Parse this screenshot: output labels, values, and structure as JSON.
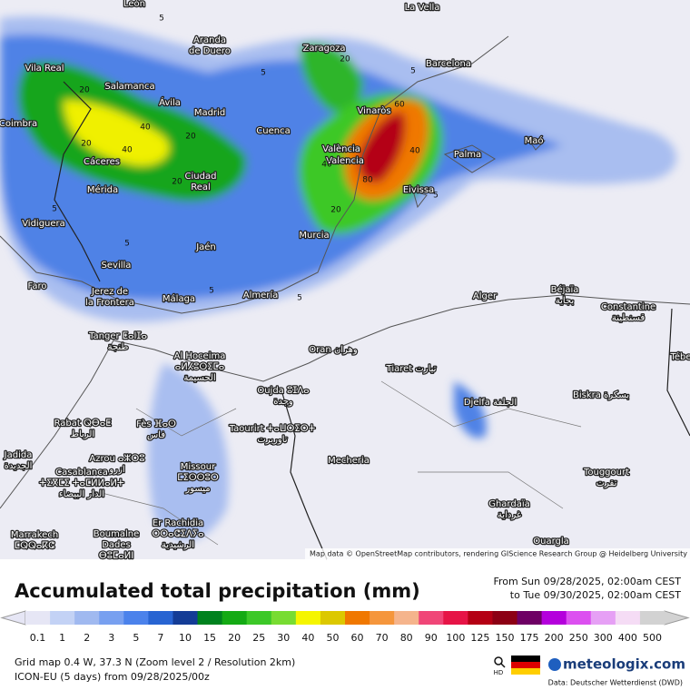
{
  "header": {
    "title": "Accumulated total precipitation (mm)",
    "period": [
      "From Sun 09/28/2025, 02:00am CEST",
      "to Tue 09/30/2025, 02:00am CEST"
    ]
  },
  "map": {
    "attribution": "Map data © OpenStreetMap contributors, rendering GIScience Research Group @ Heidelberg University",
    "cities": [
      {
        "lines": [
          "León"
        ]
      },
      {
        "lines": [
          "La Vella"
        ]
      },
      {
        "lines": [
          "Aranda",
          "de Duero"
        ]
      },
      {
        "lines": [
          "Zaragoza"
        ]
      },
      {
        "lines": [
          "Barcelona"
        ]
      },
      {
        "lines": [
          "Vila Real"
        ]
      },
      {
        "lines": [
          "Salamanca"
        ]
      },
      {
        "lines": [
          "Ávila"
        ]
      },
      {
        "lines": [
          "Madrid"
        ]
      },
      {
        "lines": [
          "Vinaròs"
        ]
      },
      {
        "lines": [
          "Coimbra"
        ]
      },
      {
        "lines": [
          "Cuenca"
        ]
      },
      {
        "lines": [
          "València"
        ]
      },
      {
        "lines": [
          "Valencia"
        ]
      },
      {
        "lines": [
          "Palma"
        ]
      },
      {
        "lines": [
          "Maó"
        ]
      },
      {
        "lines": [
          "Cáceres"
        ]
      },
      {
        "lines": [
          "Ciudad",
          "Real"
        ]
      },
      {
        "lines": [
          "Mérida"
        ]
      },
      {
        "lines": [
          "Eivissa"
        ]
      },
      {
        "lines": [
          "Vidiguera"
        ]
      },
      {
        "lines": [
          "Jaén"
        ]
      },
      {
        "lines": [
          "Murcia"
        ]
      },
      {
        "lines": [
          "Sevilla"
        ]
      },
      {
        "lines": [
          "Faro"
        ]
      },
      {
        "lines": [
          "Jerez de",
          "la Frontera"
        ]
      },
      {
        "lines": [
          "Málaga"
        ]
      },
      {
        "lines": [
          "Almería"
        ]
      },
      {
        "lines": [
          "Alger"
        ]
      },
      {
        "lines": [
          "Béjaïa",
          "بجاية"
        ]
      },
      {
        "lines": [
          "Constantine",
          "قسنطينة"
        ]
      },
      {
        "lines": [
          "Tanger ⵟⴰⵏⵊⴰ",
          "طنجة"
        ]
      },
      {
        "lines": [
          "Al Hoceima",
          "ⴰⵍⵃⵓⵙⵉⵎⴰ",
          "الحسيمة"
        ]
      },
      {
        "lines": [
          "Oran وهران"
        ]
      },
      {
        "lines": [
          "Tiaret تيارت"
        ]
      },
      {
        "lines": [
          "Tébe"
        ]
      },
      {
        "lines": [
          "Oujda ⵓⵊⴷⴰ",
          "وجدة"
        ]
      },
      {
        "lines": [
          "Biskra بسكرة"
        ]
      },
      {
        "lines": [
          "Djelfa الجلفة"
        ]
      },
      {
        "lines": [
          "Rabat ⵕⴱⴰⵟ",
          "الرباط"
        ]
      },
      {
        "lines": [
          "Fès ⴼⴰⵙ",
          "فاس"
        ]
      },
      {
        "lines": [
          "Taourirt ⵜⴰⵡⵔⵉⵔⵜ",
          "تاوريرت"
        ]
      },
      {
        "lines": [
          "Jadida",
          "الجديدة"
        ]
      },
      {
        "lines": [
          "Azrou ⴰⵣⵔⵓ",
          "ازرو"
        ]
      },
      {
        "lines": [
          "Mecheria"
        ]
      },
      {
        "lines": [
          "Missour",
          "ⵎⵉⵙⵙⵓⵔ",
          "ميسور"
        ]
      },
      {
        "lines": [
          "Casablanca",
          "ⵜⵉⴳⵎⵉ ⵜⴰⵎⵍⵍⴰⵍⵜ",
          "الدار البيضاء"
        ]
      },
      {
        "lines": [
          "Touggourt",
          "تقرت"
        ]
      },
      {
        "lines": [
          "Ghardaïa",
          "غرداية"
        ]
      },
      {
        "lines": [
          "Marrakech",
          "ⵎⵕⵕⴰⴽⵛ"
        ]
      },
      {
        "lines": [
          "Boumalne",
          "Dades",
          "ⴱⵓⵎⴰⵍⵏ"
        ]
      },
      {
        "lines": [
          "Er Rachidia",
          "ⵔⵔⴰⵛⵉⴷⵢⴰ",
          "الرشيدية"
        ]
      },
      {
        "lines": [
          "Ouargla"
        ]
      }
    ],
    "contour_labels": [
      "5",
      "5",
      "20",
      "20",
      "40",
      "20",
      "20",
      "40",
      "60",
      "80",
      "40",
      "40",
      "20",
      "5",
      "5",
      "5",
      "5",
      "5",
      "20",
      "5"
    ]
  },
  "legend": {
    "values": [
      0.1,
      1,
      2,
      3,
      5,
      7,
      10,
      15,
      20,
      25,
      30,
      40,
      50,
      60,
      70,
      80,
      90,
      100,
      125,
      150,
      175,
      200,
      250,
      300,
      400,
      500
    ],
    "colors": [
      "#e6e6f5",
      "#c3d2f5",
      "#a0b9f0",
      "#78a0f0",
      "#4b82eb",
      "#2864d2",
      "#143c96",
      "#00821e",
      "#14aa14",
      "#3cc828",
      "#78dc32",
      "#f5f500",
      "#dcc800",
      "#f07800",
      "#f5963c",
      "#f5b48c",
      "#f04678",
      "#e61446",
      "#b40014",
      "#8c0014",
      "#6e0064",
      "#b400dc",
      "#dc50f0",
      "#e6a0f5",
      "#f5dcf5",
      "#d2d2d2"
    ]
  },
  "footer": {
    "grid": "Grid map 0.4 W, 37.3 N (Zoom level 2 / Resolution 2km)",
    "model": "ICON-EU (5 days) from 09/28/2025/00z",
    "hd": "HD",
    "brand": "meteologix.com",
    "source": "Data: Deutscher Wetterdienst (DWD)"
  }
}
